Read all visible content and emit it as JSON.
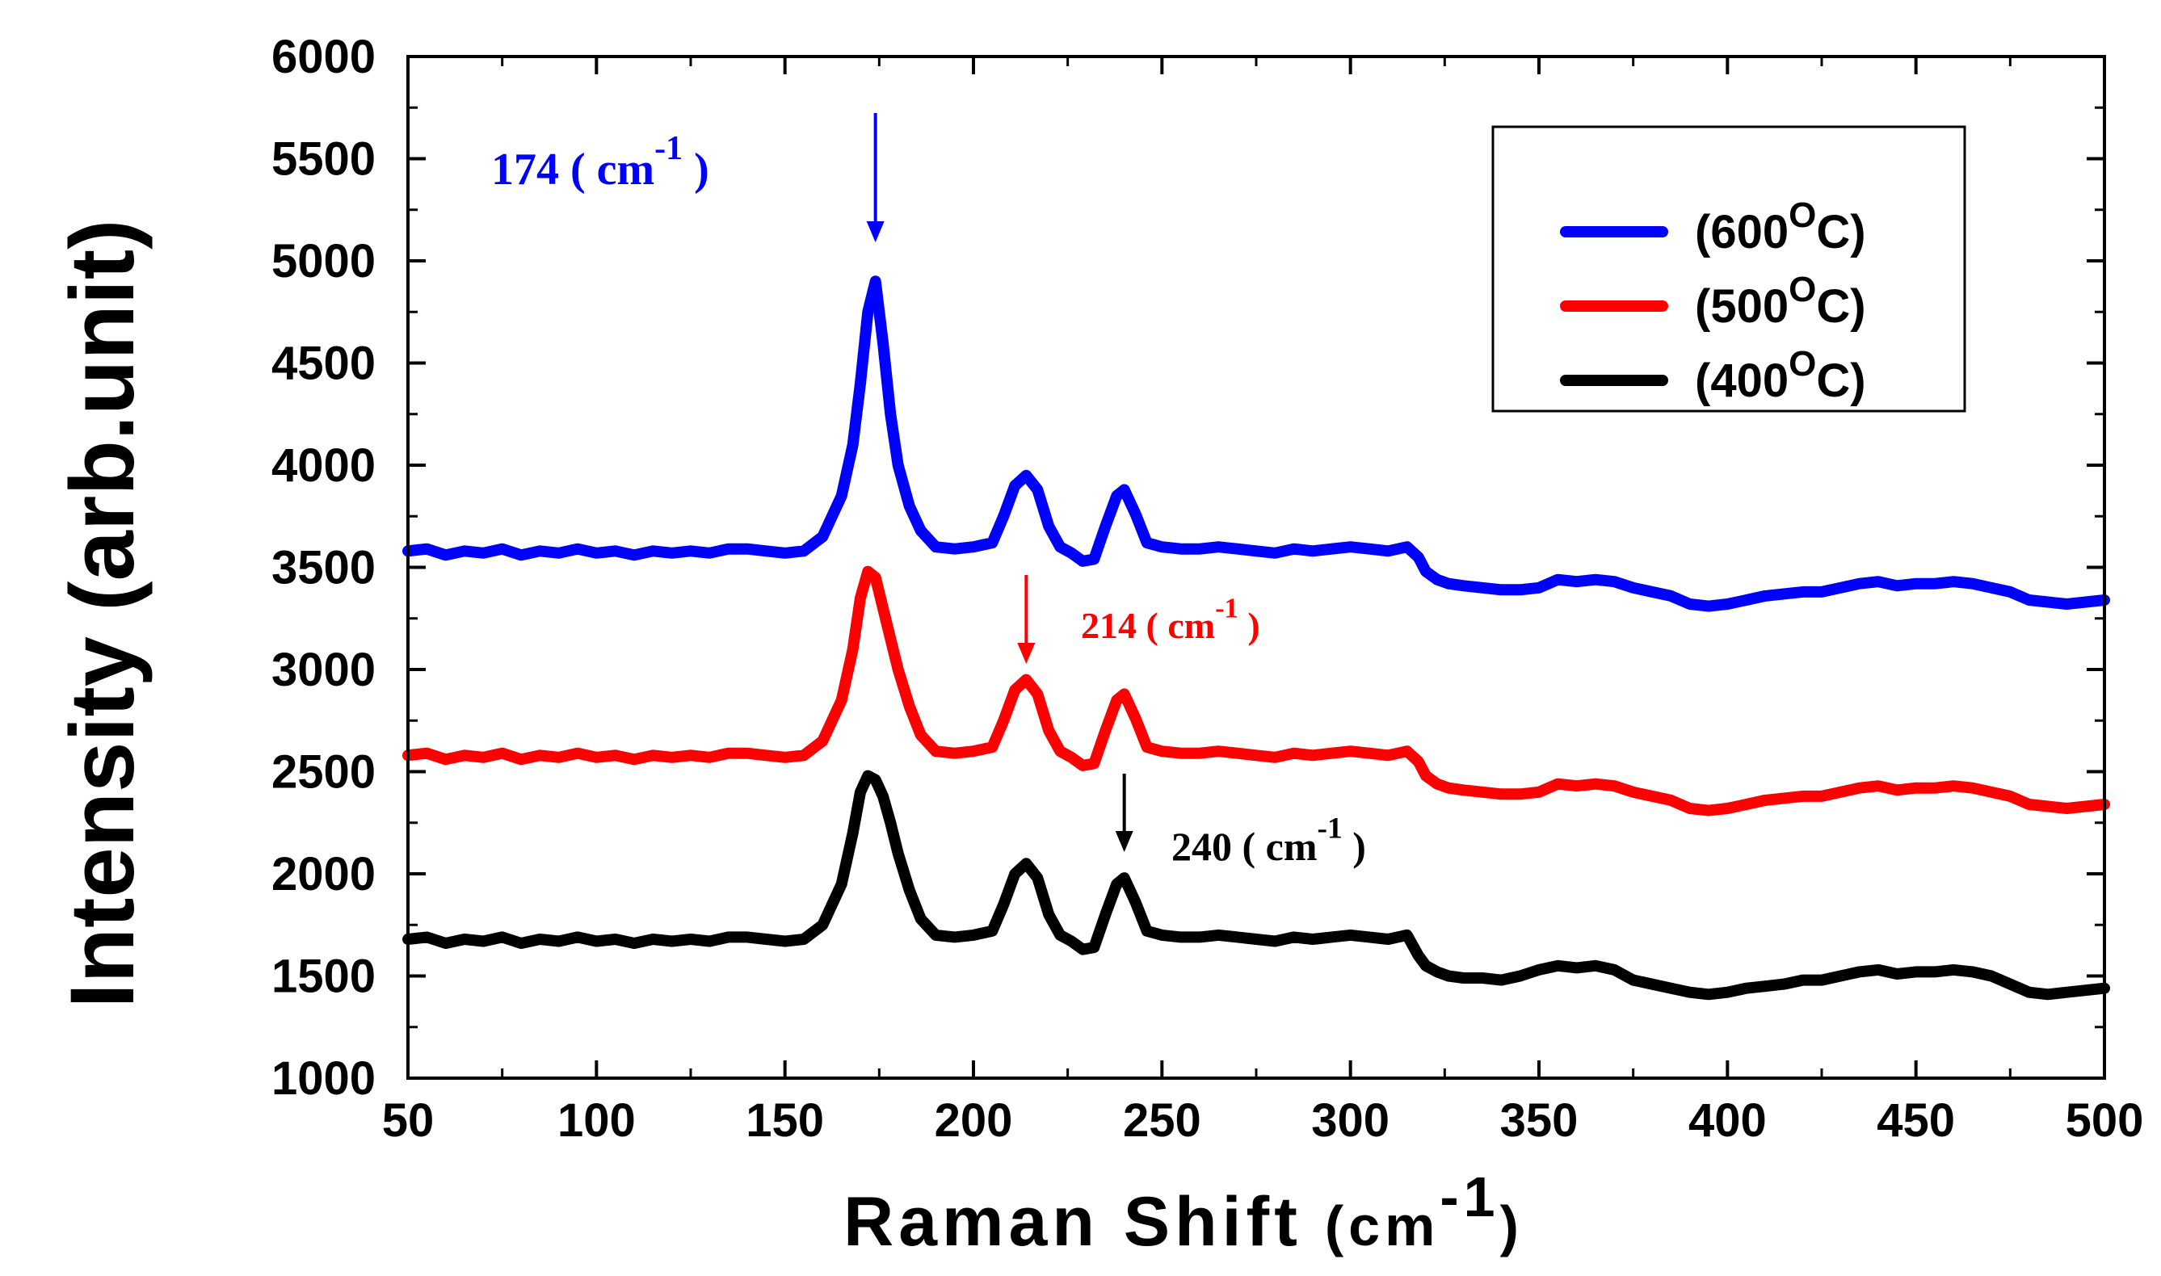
{
  "chart_data": {
    "type": "line",
    "title": "",
    "xlabel": "Raman Shift",
    "xlabel_unit": "(cm",
    "xlabel_exp": "-1",
    "xlabel_close": ")",
    "ylabel": "Intensity (arb.unit)",
    "xlim": [
      50,
      500
    ],
    "ylim": [
      1000,
      6000
    ],
    "xticks": [
      50,
      100,
      150,
      200,
      250,
      300,
      350,
      400,
      450,
      500
    ],
    "yticks": [
      1000,
      1500,
      2000,
      2500,
      3000,
      3500,
      4000,
      4500,
      5000,
      5500,
      6000
    ],
    "legend_position": "top-right",
    "series": [
      {
        "name": "(600",
        "label_exp": "O",
        "label_end": "C)",
        "color": "#0000ff",
        "x": [
          50,
          55,
          60,
          65,
          70,
          75,
          80,
          85,
          90,
          95,
          100,
          105,
          110,
          115,
          120,
          125,
          130,
          135,
          140,
          145,
          150,
          155,
          160,
          165,
          168,
          170,
          172,
          174,
          176,
          178,
          180,
          183,
          186,
          190,
          195,
          200,
          205,
          208,
          211,
          214,
          217,
          220,
          223,
          226,
          229,
          232,
          235,
          238,
          240,
          243,
          246,
          250,
          255,
          260,
          265,
          270,
          275,
          280,
          285,
          290,
          295,
          300,
          305,
          310,
          315,
          318,
          320,
          323,
          326,
          330,
          335,
          340,
          345,
          350,
          355,
          360,
          365,
          370,
          375,
          380,
          385,
          390,
          395,
          400,
          405,
          410,
          415,
          420,
          425,
          430,
          435,
          440,
          445,
          450,
          455,
          460,
          465,
          470,
          475,
          480,
          485,
          490,
          495,
          500
        ],
        "y": [
          3580,
          3590,
          3560,
          3580,
          3570,
          3590,
          3560,
          3580,
          3570,
          3590,
          3570,
          3580,
          3560,
          3580,
          3570,
          3580,
          3570,
          3590,
          3590,
          3580,
          3570,
          3580,
          3650,
          3850,
          4100,
          4400,
          4750,
          4900,
          4600,
          4250,
          4000,
          3800,
          3680,
          3600,
          3590,
          3600,
          3620,
          3750,
          3900,
          3950,
          3880,
          3700,
          3600,
          3570,
          3530,
          3540,
          3700,
          3850,
          3880,
          3760,
          3620,
          3600,
          3590,
          3590,
          3600,
          3590,
          3580,
          3570,
          3590,
          3580,
          3590,
          3600,
          3590,
          3580,
          3600,
          3550,
          3480,
          3440,
          3420,
          3410,
          3400,
          3390,
          3390,
          3400,
          3440,
          3430,
          3440,
          3430,
          3400,
          3380,
          3360,
          3320,
          3310,
          3320,
          3340,
          3360,
          3370,
          3380,
          3380,
          3400,
          3420,
          3430,
          3410,
          3420,
          3420,
          3430,
          3420,
          3400,
          3380,
          3340,
          3330,
          3320,
          3330,
          3340
        ]
      },
      {
        "name": "(500",
        "label_exp": "O",
        "label_end": "C)",
        "color": "#ff0000",
        "x": [
          50,
          55,
          60,
          65,
          70,
          75,
          80,
          85,
          90,
          95,
          100,
          105,
          110,
          115,
          120,
          125,
          130,
          135,
          140,
          145,
          150,
          155,
          160,
          165,
          168,
          170,
          172,
          174,
          176,
          178,
          180,
          183,
          186,
          190,
          195,
          200,
          205,
          208,
          211,
          214,
          217,
          220,
          223,
          226,
          229,
          232,
          235,
          238,
          240,
          243,
          246,
          250,
          255,
          260,
          265,
          270,
          275,
          280,
          285,
          290,
          295,
          300,
          305,
          310,
          315,
          318,
          320,
          323,
          326,
          330,
          335,
          340,
          345,
          350,
          355,
          360,
          365,
          370,
          375,
          380,
          385,
          390,
          395,
          400,
          405,
          410,
          415,
          420,
          425,
          430,
          435,
          440,
          445,
          450,
          455,
          460,
          465,
          470,
          475,
          480,
          485,
          490,
          495,
          500
        ],
        "y": [
          2580,
          2590,
          2560,
          2580,
          2570,
          2590,
          2560,
          2580,
          2570,
          2590,
          2570,
          2580,
          2560,
          2580,
          2570,
          2580,
          2570,
          2590,
          2590,
          2580,
          2570,
          2580,
          2650,
          2850,
          3100,
          3350,
          3480,
          3450,
          3300,
          3150,
          3000,
          2820,
          2680,
          2600,
          2590,
          2600,
          2620,
          2750,
          2900,
          2950,
          2880,
          2700,
          2600,
          2570,
          2530,
          2540,
          2700,
          2850,
          2880,
          2760,
          2620,
          2600,
          2590,
          2590,
          2600,
          2590,
          2580,
          2570,
          2590,
          2580,
          2590,
          2600,
          2590,
          2580,
          2600,
          2550,
          2480,
          2440,
          2420,
          2410,
          2400,
          2390,
          2390,
          2400,
          2440,
          2430,
          2440,
          2430,
          2400,
          2380,
          2360,
          2320,
          2310,
          2320,
          2340,
          2360,
          2370,
          2380,
          2380,
          2400,
          2420,
          2430,
          2410,
          2420,
          2420,
          2430,
          2420,
          2400,
          2380,
          2340,
          2330,
          2320,
          2330,
          2340
        ]
      },
      {
        "name": "(400",
        "label_exp": "O",
        "label_end": "C)",
        "color": "#000000",
        "x": [
          50,
          55,
          60,
          65,
          70,
          75,
          80,
          85,
          90,
          95,
          100,
          105,
          110,
          115,
          120,
          125,
          130,
          135,
          140,
          145,
          150,
          155,
          160,
          165,
          168,
          170,
          172,
          174,
          176,
          178,
          180,
          183,
          186,
          190,
          195,
          200,
          205,
          208,
          211,
          214,
          217,
          220,
          223,
          226,
          229,
          232,
          235,
          238,
          240,
          243,
          246,
          250,
          255,
          260,
          265,
          270,
          275,
          280,
          285,
          290,
          295,
          300,
          305,
          310,
          315,
          318,
          320,
          323,
          326,
          330,
          335,
          340,
          345,
          350,
          355,
          360,
          365,
          370,
          375,
          380,
          385,
          390,
          395,
          400,
          405,
          410,
          415,
          420,
          425,
          430,
          435,
          440,
          445,
          450,
          455,
          460,
          465,
          470,
          475,
          480,
          485,
          490,
          495,
          500
        ],
        "y": [
          1680,
          1690,
          1660,
          1680,
          1670,
          1690,
          1660,
          1680,
          1670,
          1690,
          1670,
          1680,
          1660,
          1680,
          1670,
          1680,
          1670,
          1690,
          1690,
          1680,
          1670,
          1680,
          1750,
          1950,
          2200,
          2400,
          2480,
          2460,
          2380,
          2250,
          2100,
          1920,
          1780,
          1700,
          1690,
          1700,
          1720,
          1850,
          2000,
          2050,
          1980,
          1800,
          1700,
          1670,
          1630,
          1640,
          1800,
          1950,
          1980,
          1860,
          1720,
          1700,
          1690,
          1690,
          1700,
          1690,
          1680,
          1670,
          1690,
          1680,
          1690,
          1700,
          1690,
          1680,
          1700,
          1600,
          1550,
          1520,
          1500,
          1490,
          1490,
          1480,
          1500,
          1530,
          1550,
          1540,
          1550,
          1530,
          1480,
          1460,
          1440,
          1420,
          1410,
          1420,
          1440,
          1450,
          1460,
          1480,
          1480,
          1500,
          1520,
          1530,
          1510,
          1520,
          1520,
          1530,
          1520,
          1500,
          1460,
          1420,
          1410,
          1420,
          1430,
          1440
        ]
      }
    ],
    "annotations": [
      {
        "text": "174 ( cm",
        "exp": "-1",
        "close": " )",
        "x": 174,
        "color": "#0000ff"
      },
      {
        "text": "214 ( cm",
        "exp": "-1",
        "close": " )",
        "x": 214,
        "color": "#ff0000"
      },
      {
        "text": "240 ( cm",
        "exp": "-1",
        "close": " )",
        "x": 240,
        "color": "#000000"
      }
    ]
  }
}
